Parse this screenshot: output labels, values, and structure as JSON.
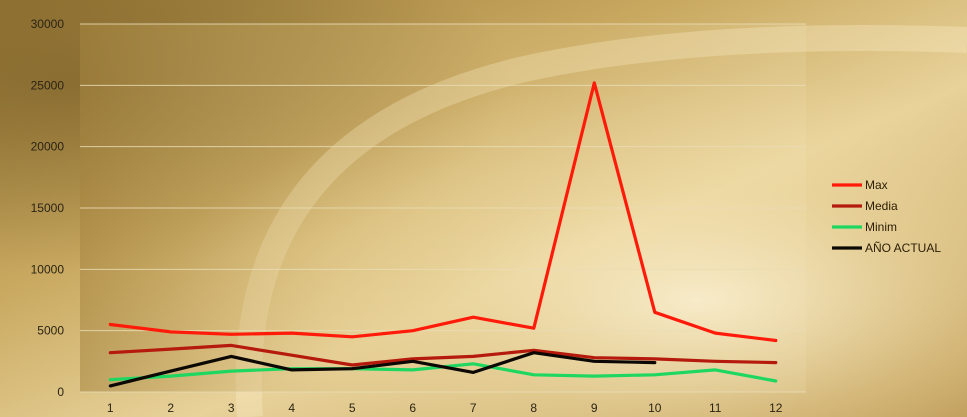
{
  "chart_data": {
    "type": "line",
    "title": "",
    "xlabel": "",
    "ylabel": "",
    "x": [
      1,
      2,
      3,
      4,
      5,
      6,
      7,
      8,
      9,
      10,
      11,
      12
    ],
    "ylim": [
      0,
      30000
    ],
    "yticks": [
      0,
      5000,
      10000,
      15000,
      20000,
      25000,
      30000
    ],
    "grid": "horizontal",
    "legend_position": "right",
    "series": [
      {
        "name": "Max",
        "color": "#ff1a0a",
        "values": [
          5500,
          4900,
          4700,
          4800,
          4500,
          5000,
          6100,
          5200,
          25200,
          6500,
          4800,
          4200
        ]
      },
      {
        "name": "Media",
        "color": "#b51a0d",
        "values": [
          3200,
          3500,
          3800,
          3000,
          2200,
          2700,
          2900,
          3400,
          2800,
          2700,
          2500,
          2400
        ]
      },
      {
        "name": "Minim",
        "color": "#1ed760",
        "values": [
          1000,
          1300,
          1700,
          1900,
          1900,
          1800,
          2300,
          1400,
          1300,
          1400,
          1800,
          900
        ]
      },
      {
        "name": "AÑO ACTUAL",
        "color": "#0c0905",
        "values": [
          500,
          1700,
          2900,
          1800,
          1900,
          2500,
          1600,
          3200,
          2500,
          2400,
          null,
          null
        ]
      }
    ]
  }
}
